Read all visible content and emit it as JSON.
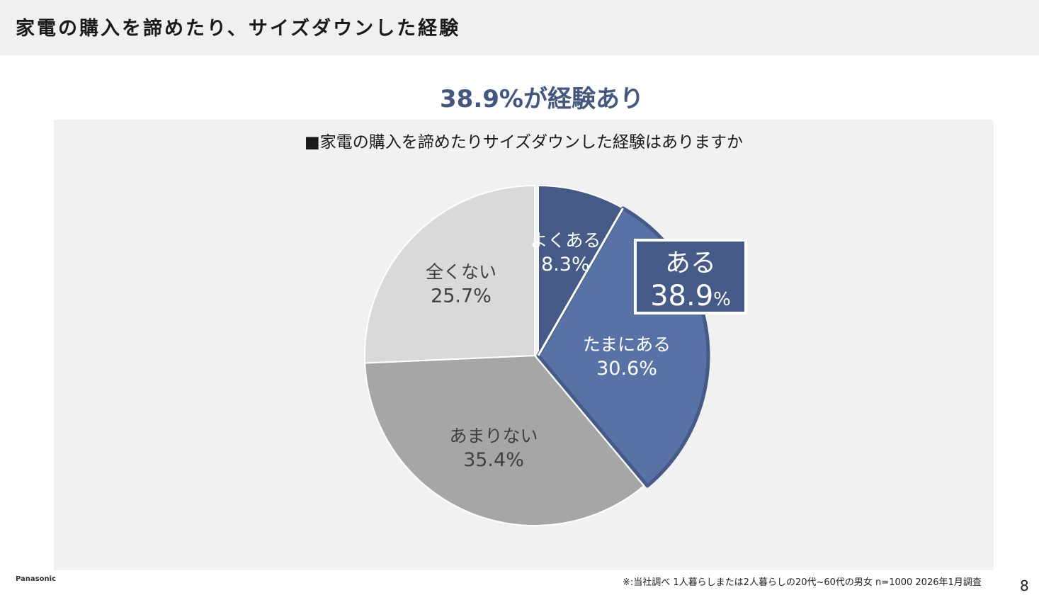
{
  "header": {
    "title": "家電の購入を諦めたり、サイズダウンした経験"
  },
  "headline": "38.9%が経験あり",
  "chart_data": {
    "type": "pie",
    "title": "■家電の購入を諦めたりサイズダウンした経験はありますか",
    "start": "top, clockwise",
    "slices": [
      {
        "label": "よくある",
        "value": 8.3,
        "value_label": "8.3%",
        "color": "#455a86",
        "text_color": "#ffffff"
      },
      {
        "label": "たまにある",
        "value": 30.6,
        "value_label": "30.6%",
        "color": "#5872a6",
        "text_color": "#ffffff"
      },
      {
        "label": "あまりない",
        "value": 35.4,
        "value_label": "35.4%",
        "color": "#a6a6a6",
        "text_color": "#404040"
      },
      {
        "label": "全くない",
        "value": 25.7,
        "value_label": "25.7%",
        "color": "#d9d9d9",
        "text_color": "#404040"
      }
    ],
    "callout": {
      "label": "ある",
      "value": 38.9,
      "value_label": "38.9",
      "unit": "%",
      "color": "#455a86"
    }
  },
  "footer": {
    "logo": "Panasonic",
    "note": "※:当社調べ 1人暮らしまたは2人暮らしの20代~60代の男女 n=1000 2026年1月調査",
    "page": "8"
  }
}
